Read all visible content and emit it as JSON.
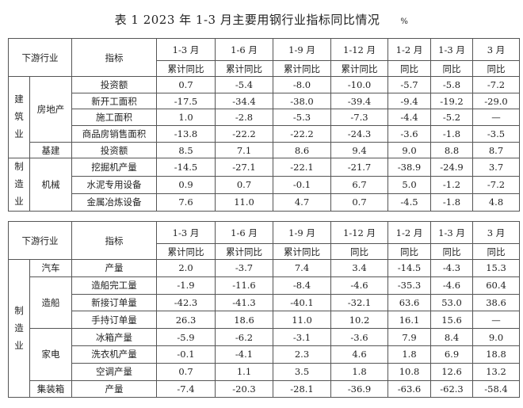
{
  "title": "表 1 2023 年 1-3 月主要用钢行业指标同比情况",
  "unit": "%",
  "table1": {
    "header": {
      "industry": "下游行业",
      "indicator": "指标",
      "periods": [
        "1-3 月",
        "1-6 月",
        "1-9 月",
        "1-12 月",
        "1-2 月",
        "1-3 月",
        "3 月"
      ],
      "measures": [
        "累计同比",
        "累计同比",
        "累计同比",
        "累计同比",
        "同比",
        "同比",
        "同比"
      ]
    },
    "groups": [
      {
        "sector": "建筑业",
        "subs": [
          {
            "name": "房地产",
            "rows": [
              {
                "indicator": "投资额",
                "values": [
                  "0.7",
                  "-5.4",
                  "-8.0",
                  "-10.0",
                  "-5.7",
                  "-5.8",
                  "-7.2"
                ]
              },
              {
                "indicator": "新开工面积",
                "values": [
                  "-17.5",
                  "-34.4",
                  "-38.0",
                  "-39.4",
                  "-9.4",
                  "-19.2",
                  "-29.0"
                ]
              },
              {
                "indicator": "施工面积",
                "values": [
                  "1.0",
                  "-2.8",
                  "-5.3",
                  "-7.3",
                  "-4.4",
                  "-5.2",
                  "—"
                ]
              },
              {
                "indicator": "商品房销售面积",
                "values": [
                  "-13.8",
                  "-22.2",
                  "-22.2",
                  "-24.3",
                  "-3.6",
                  "-1.8",
                  "-3.5"
                ]
              }
            ]
          },
          {
            "name": "基建",
            "rows": [
              {
                "indicator": "投资额",
                "values": [
                  "8.5",
                  "7.1",
                  "8.6",
                  "9.4",
                  "9.0",
                  "8.8",
                  "8.7"
                ]
              }
            ]
          }
        ]
      },
      {
        "sector": "制造业",
        "subs": [
          {
            "name": "机械",
            "rows": [
              {
                "indicator": "挖掘机产量",
                "values": [
                  "-14.5",
                  "-27.1",
                  "-22.1",
                  "-21.7",
                  "-38.9",
                  "-24.9",
                  "3.7"
                ]
              },
              {
                "indicator": "水泥专用设备",
                "values": [
                  "0.9",
                  "0.7",
                  "-0.1",
                  "6.7",
                  "5.0",
                  "-1.2",
                  "-7.2"
                ]
              },
              {
                "indicator": "金属冶炼设备",
                "values": [
                  "7.6",
                  "11.0",
                  "4.7",
                  "0.7",
                  "-4.5",
                  "-1.8",
                  "4.8"
                ]
              }
            ]
          }
        ]
      }
    ]
  },
  "table2": {
    "header": {
      "industry": "下游行业",
      "indicator": "指标",
      "periods": [
        "1-3 月",
        "1-6 月",
        "1-9 月",
        "1-12 月",
        "1-2 月",
        "1-3 月",
        "3 月"
      ],
      "measures": [
        "累计同比",
        "累计同比",
        "累计同比",
        "同比",
        "同比",
        "同比",
        "同比"
      ]
    },
    "groups": [
      {
        "sector": "制造业",
        "subs": [
          {
            "name": "汽车",
            "rows": [
              {
                "indicator": "产量",
                "values": [
                  "2.0",
                  "-3.7",
                  "7.4",
                  "3.4",
                  "-14.5",
                  "-4.3",
                  "15.3"
                ]
              }
            ]
          },
          {
            "name": "造船",
            "rows": [
              {
                "indicator": "造船完工量",
                "values": [
                  "-1.9",
                  "-11.6",
                  "-8.4",
                  "-4.6",
                  "-35.3",
                  "-4.6",
                  "60.4"
                ]
              },
              {
                "indicator": "新接订单量",
                "values": [
                  "-42.3",
                  "-41.3",
                  "-40.1",
                  "-32.1",
                  "63.6",
                  "53.0",
                  "38.6"
                ]
              },
              {
                "indicator": "手持订单量",
                "values": [
                  "26.3",
                  "18.6",
                  "11.0",
                  "10.2",
                  "16.1",
                  "15.6",
                  "—"
                ]
              }
            ]
          },
          {
            "name": "家电",
            "rows": [
              {
                "indicator": "冰箱产量",
                "values": [
                  "-5.9",
                  "-6.2",
                  "-3.1",
                  "-3.6",
                  "7.9",
                  "8.4",
                  "9.0"
                ]
              },
              {
                "indicator": "洗衣机产量",
                "values": [
                  "-0.1",
                  "-4.1",
                  "2.3",
                  "4.6",
                  "1.8",
                  "6.9",
                  "18.8"
                ]
              },
              {
                "indicator": "空调产量",
                "values": [
                  "0.7",
                  "1.1",
                  "3.5",
                  "1.8",
                  "10.8",
                  "12.6",
                  "13.2"
                ]
              }
            ]
          },
          {
            "name": "集装箱",
            "rows": [
              {
                "indicator": "产量",
                "values": [
                  "-7.4",
                  "-20.3",
                  "-28.1",
                  "-36.9",
                  "-63.6",
                  "-62.3",
                  "-58.4"
                ]
              }
            ]
          }
        ]
      }
    ]
  }
}
